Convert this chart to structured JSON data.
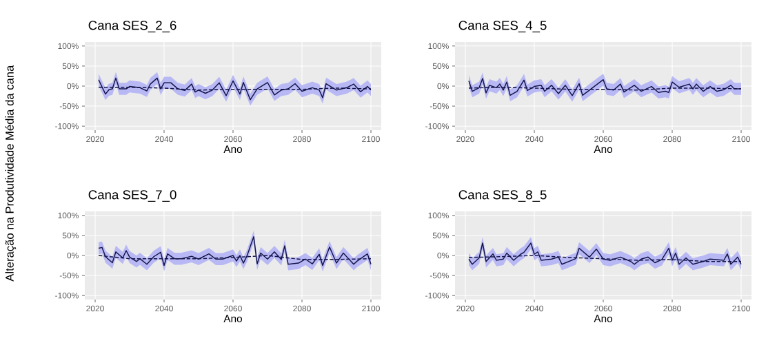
{
  "chart_data": [
    {
      "type": "line",
      "title": "Cana SES_2_6",
      "xlabel": "Ano",
      "ylabel": "Alteração na Produtividade Média da cana",
      "xlim": [
        2017,
        2103
      ],
      "ylim": [
        -110,
        110
      ],
      "xticks": [
        2020,
        2040,
        2060,
        2080,
        2100
      ],
      "yticks": [
        {
          "value": -100,
          "label": "-100%"
        },
        {
          "value": -50,
          "label": "-50%"
        },
        {
          "value": 0,
          "label": "0%"
        },
        {
          "value": 50,
          "label": "50%"
        },
        {
          "value": 100,
          "label": "100%"
        }
      ],
      "grid": true,
      "series": [
        {
          "color": "#14144a",
          "line_style": "solid",
          "x": [
            2021,
            2023,
            2024,
            2025,
            2026,
            2027,
            2029,
            2030,
            2033,
            2035,
            2036,
            2038,
            2039,
            2040,
            2042,
            2044,
            2046,
            2048,
            2049,
            2050,
            2052,
            2054,
            2056,
            2058,
            2060,
            2062,
            2063,
            2065,
            2067,
            2070,
            2072,
            2074,
            2076,
            2078,
            2080,
            2083,
            2085,
            2086,
            2087,
            2090,
            2093,
            2095,
            2097,
            2099,
            2100
          ],
          "values": [
            16,
            -20,
            -9,
            -7,
            20,
            -7,
            -7,
            -1,
            -4,
            -12,
            5,
            20,
            -7,
            8,
            8,
            -7,
            -11,
            5,
            -15,
            -10,
            -18,
            -10,
            8,
            -24,
            13,
            -20,
            9,
            -34,
            -7,
            9,
            -22,
            -10,
            -7,
            6,
            -13,
            -4,
            -10,
            -29,
            6,
            -10,
            -4,
            5,
            -14,
            -1,
            -10
          ],
          "upper": [
            31,
            -5,
            6,
            8,
            35,
            8,
            8,
            14,
            11,
            3,
            20,
            35,
            8,
            23,
            23,
            8,
            4,
            20,
            0,
            5,
            -3,
            5,
            23,
            -9,
            28,
            -5,
            24,
            -19,
            8,
            24,
            -7,
            5,
            8,
            21,
            2,
            11,
            5,
            -14,
            21,
            5,
            11,
            20,
            1,
            14,
            5
          ],
          "lower": [
            1,
            -35,
            -24,
            -22,
            5,
            -22,
            -22,
            -16,
            -19,
            -27,
            -10,
            5,
            -22,
            -7,
            -7,
            -22,
            -26,
            -10,
            -30,
            -25,
            -33,
            -25,
            -7,
            -39,
            -2,
            -35,
            -6,
            -49,
            -22,
            -6,
            -37,
            -25,
            -22,
            -9,
            -28,
            -19,
            -25,
            -44,
            -9,
            -25,
            -19,
            -10,
            -29,
            -16,
            -25
          ]
        },
        {
          "color": "#14144a",
          "line_style": "dashed",
          "x": [
            2021,
            2030,
            2040,
            2050,
            2060,
            2070,
            2080,
            2090,
            2100
          ],
          "values": [
            -3,
            -3,
            -5,
            -10,
            -8,
            -8,
            -8,
            -5,
            -7
          ]
        }
      ]
    },
    {
      "type": "line",
      "title": "Cana SES_4_5",
      "xlabel": "Ano",
      "xlim": [
        2017,
        2103
      ],
      "ylim": [
        -110,
        110
      ],
      "xticks": [
        2020,
        2040,
        2060,
        2080,
        2100
      ],
      "yticks": [
        {
          "value": -100,
          "label": "-100%"
        },
        {
          "value": -50,
          "label": "-50%"
        },
        {
          "value": 0,
          "label": "0%"
        },
        {
          "value": 50,
          "label": "50%"
        },
        {
          "value": 100,
          "label": "100%"
        }
      ],
      "grid": true,
      "series": [
        {
          "color": "#14144a",
          "line_style": "solid",
          "x": [
            2021,
            2022,
            2024,
            2025,
            2026,
            2027,
            2029,
            2030,
            2031,
            2032,
            2033,
            2035,
            2037,
            2038,
            2040,
            2042,
            2043,
            2045,
            2047,
            2049,
            2051,
            2053,
            2054,
            2056,
            2060,
            2061,
            2063,
            2065,
            2066,
            2069,
            2071,
            2074,
            2076,
            2078,
            2079,
            2080,
            2082,
            2085,
            2086,
            2087,
            2089,
            2091,
            2093,
            2095,
            2097,
            2098,
            2100
          ],
          "values": [
            13,
            -13,
            -4,
            19,
            -17,
            2,
            -4,
            5,
            -10,
            10,
            -23,
            -13,
            15,
            -11,
            -1,
            2,
            -13,
            2,
            -19,
            2,
            -24,
            6,
            -23,
            -10,
            16,
            -7,
            -10,
            5,
            -15,
            2,
            -13,
            -1,
            -16,
            -13,
            -16,
            10,
            -3,
            5,
            -7,
            5,
            -13,
            -1,
            -13,
            -9,
            2,
            -7,
            -7
          ],
          "upper": [
            28,
            2,
            11,
            34,
            -2,
            17,
            11,
            20,
            5,
            25,
            -8,
            2,
            30,
            4,
            14,
            17,
            2,
            17,
            -4,
            17,
            -9,
            21,
            -8,
            5,
            31,
            8,
            5,
            20,
            0,
            17,
            2,
            14,
            -1,
            2,
            -1,
            25,
            12,
            20,
            8,
            20,
            2,
            14,
            2,
            6,
            17,
            8,
            8
          ],
          "lower": [
            -2,
            -28,
            -19,
            4,
            -32,
            -13,
            -19,
            -10,
            -25,
            -5,
            -38,
            -28,
            0,
            -26,
            -16,
            -13,
            -28,
            -13,
            -34,
            -13,
            -39,
            -9,
            -38,
            -25,
            1,
            -22,
            -25,
            -10,
            -30,
            -13,
            -28,
            -16,
            -31,
            -28,
            -31,
            -5,
            -18,
            -10,
            -22,
            -10,
            -28,
            -16,
            -28,
            -24,
            -13,
            -22,
            -22
          ]
        },
        {
          "color": "#14144a",
          "line_style": "dashed",
          "x": [
            2021,
            2030,
            2040,
            2050,
            2060,
            2070,
            2080,
            2090,
            2100
          ],
          "values": [
            -5,
            -3,
            -5,
            -8,
            -8,
            -10,
            -5,
            -5,
            -7
          ]
        }
      ]
    },
    {
      "type": "line",
      "title": "Cana SES_7_0",
      "xlabel": "Ano",
      "xlim": [
        2017,
        2103
      ],
      "ylim": [
        -110,
        110
      ],
      "xticks": [
        2020,
        2040,
        2060,
        2080,
        2100
      ],
      "yticks": [
        {
          "value": -100,
          "label": "-100%"
        },
        {
          "value": -50,
          "label": "-50%"
        },
        {
          "value": 0,
          "label": "0%"
        },
        {
          "value": 50,
          "label": "50%"
        },
        {
          "value": 100,
          "label": "100%"
        }
      ],
      "grid": true,
      "series": [
        {
          "color": "#14144a",
          "line_style": "solid",
          "x": [
            2021,
            2022,
            2023,
            2025,
            2026,
            2028,
            2029,
            2030,
            2032,
            2033,
            2035,
            2037,
            2039,
            2040,
            2041,
            2043,
            2045,
            2048,
            2050,
            2053,
            2055,
            2057,
            2060,
            2061,
            2062,
            2063,
            2064,
            2066,
            2067,
            2068,
            2070,
            2072,
            2074,
            2075,
            2076,
            2079,
            2081,
            2083,
            2085,
            2086,
            2088,
            2090,
            2092,
            2095,
            2096,
            2099,
            2100
          ],
          "values": [
            18,
            20,
            -3,
            -18,
            9,
            -6,
            12,
            -4,
            -15,
            -8,
            -22,
            -3,
            8,
            -25,
            4,
            -8,
            -8,
            -2,
            -9,
            4,
            -9,
            -9,
            0,
            -14,
            0,
            -19,
            -2,
            47,
            -21,
            6,
            -9,
            9,
            -10,
            24,
            -22,
            -19,
            -9,
            -21,
            3,
            -25,
            21,
            -19,
            6,
            -22,
            -14,
            4,
            -22
          ],
          "upper": [
            33,
            35,
            12,
            -3,
            24,
            9,
            27,
            11,
            0,
            7,
            -7,
            12,
            23,
            -10,
            19,
            7,
            7,
            13,
            6,
            19,
            6,
            6,
            15,
            1,
            15,
            -4,
            13,
            62,
            -6,
            21,
            6,
            24,
            5,
            39,
            -7,
            -4,
            6,
            -6,
            18,
            -10,
            36,
            -4,
            21,
            -7,
            1,
            19,
            -7
          ],
          "lower": [
            3,
            5,
            -18,
            -33,
            -6,
            -21,
            -3,
            -19,
            -30,
            -23,
            -37,
            -18,
            -7,
            -40,
            -11,
            -23,
            -23,
            -17,
            -24,
            -11,
            -24,
            -24,
            -15,
            -29,
            -15,
            -34,
            -17,
            32,
            -36,
            -9,
            -24,
            -6,
            -25,
            9,
            -37,
            -34,
            -24,
            -36,
            -12,
            -40,
            6,
            -34,
            -9,
            -37,
            -29,
            -11,
            -37
          ]
        },
        {
          "color": "#14144a",
          "line_style": "dashed",
          "x": [
            2021,
            2030,
            2040,
            2050,
            2060,
            2070,
            2080,
            2090,
            2100
          ],
          "values": [
            0,
            -8,
            -8,
            -8,
            -5,
            0,
            -10,
            -10,
            -8
          ]
        }
      ]
    },
    {
      "type": "line",
      "title": "Cana SES_8_5",
      "xlabel": "Ano",
      "xlim": [
        2017,
        2103
      ],
      "ylim": [
        -110,
        110
      ],
      "xticks": [
        2020,
        2040,
        2060,
        2080,
        2100
      ],
      "yticks": [
        {
          "value": -100,
          "label": "-100%"
        },
        {
          "value": -50,
          "label": "-50%"
        },
        {
          "value": 0,
          "label": "0%"
        },
        {
          "value": 50,
          "label": "50%"
        },
        {
          "value": 100,
          "label": "100%"
        }
      ],
      "grid": true,
      "series": [
        {
          "color": "#14144a",
          "line_style": "solid",
          "x": [
            2021,
            2022,
            2024,
            2025,
            2026,
            2028,
            2029,
            2031,
            2032,
            2034,
            2036,
            2037,
            2039,
            2040,
            2041,
            2042,
            2045,
            2047,
            2048,
            2052,
            2053,
            2056,
            2058,
            2060,
            2062,
            2065,
            2068,
            2069,
            2071,
            2073,
            2075,
            2077,
            2079,
            2080,
            2081,
            2082,
            2084,
            2086,
            2089,
            2091,
            2095,
            2096,
            2097,
            2099,
            2100
          ],
          "values": [
            -9,
            -22,
            -6,
            31,
            -15,
            4,
            -12,
            -9,
            6,
            -12,
            3,
            8,
            31,
            3,
            9,
            -12,
            -9,
            -4,
            -22,
            -8,
            18,
            -4,
            16,
            -9,
            -12,
            -4,
            -15,
            -22,
            -9,
            -4,
            -18,
            -10,
            18,
            -12,
            6,
            -22,
            -6,
            -22,
            -15,
            -9,
            -12,
            4,
            -22,
            -4,
            -22
          ],
          "upper": [
            6,
            -7,
            9,
            46,
            0,
            19,
            3,
            6,
            21,
            3,
            18,
            23,
            46,
            18,
            24,
            3,
            6,
            11,
            -7,
            7,
            33,
            11,
            31,
            6,
            3,
            11,
            0,
            -7,
            6,
            11,
            -3,
            5,
            33,
            3,
            21,
            -7,
            9,
            -7,
            0,
            6,
            3,
            19,
            -7,
            11,
            -7
          ],
          "lower": [
            -24,
            -37,
            -21,
            16,
            -30,
            -11,
            -27,
            -24,
            -9,
            -27,
            -12,
            -7,
            16,
            -12,
            -6,
            -27,
            -24,
            -19,
            -37,
            -23,
            3,
            -19,
            1,
            -24,
            -27,
            -19,
            -30,
            -37,
            -24,
            -19,
            -33,
            -25,
            3,
            -27,
            -9,
            -37,
            -21,
            -37,
            -30,
            -24,
            -27,
            -11,
            -37,
            -19,
            -37
          ]
        },
        {
          "color": "#14144a",
          "line_style": "dashed",
          "x": [
            2021,
            2030,
            2040,
            2050,
            2060,
            2070,
            2080,
            2090,
            2100
          ],
          "values": [
            -5,
            -3,
            0,
            -5,
            -8,
            -12,
            -10,
            -15,
            -15
          ]
        }
      ]
    }
  ]
}
